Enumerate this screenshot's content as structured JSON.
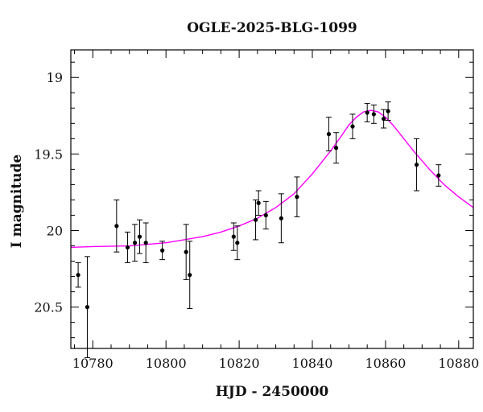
{
  "chart_data": {
    "type": "scatter",
    "title": "OGLE-2025-BLG-1099",
    "xlabel": "HJD - 2450000",
    "ylabel": "I magnitude",
    "xlim": [
      10774,
      10884
    ],
    "ylim": [
      20.77,
      18.82
    ],
    "y_inverted": true,
    "x_ticks": [
      10780,
      10800,
      10820,
      10840,
      10860,
      10880
    ],
    "x_tick_labels": [
      "10780",
      "10800",
      "10820",
      "10840",
      "10860",
      "10880"
    ],
    "y_ticks": [
      19,
      19.5,
      20,
      20.5
    ],
    "y_tick_labels": [
      "19",
      "19.5",
      "20",
      "20.5"
    ],
    "grid": false,
    "legend": "none",
    "colors": {
      "data": "#000000",
      "model": "#ff00ff"
    },
    "series": [
      {
        "kind": "points_with_errorbars",
        "points": [
          {
            "x": 10776.0,
            "y": 20.29,
            "err": 0.08
          },
          {
            "x": 10778.5,
            "y": 20.5,
            "err": 0.33
          },
          {
            "x": 10786.5,
            "y": 19.97,
            "err": 0.17
          },
          {
            "x": 10789.5,
            "y": 20.11,
            "err": 0.1
          },
          {
            "x": 10791.5,
            "y": 20.08,
            "err": 0.12
          },
          {
            "x": 10792.8,
            "y": 20.04,
            "err": 0.11
          },
          {
            "x": 10794.5,
            "y": 20.08,
            "err": 0.13
          },
          {
            "x": 10799.0,
            "y": 20.13,
            "err": 0.06
          },
          {
            "x": 10805.5,
            "y": 20.14,
            "err": 0.18
          },
          {
            "x": 10806.5,
            "y": 20.29,
            "err": 0.22
          },
          {
            "x": 10818.5,
            "y": 20.04,
            "err": 0.09
          },
          {
            "x": 10819.5,
            "y": 20.08,
            "err": 0.11
          },
          {
            "x": 10824.5,
            "y": 19.93,
            "err": 0.13
          },
          {
            "x": 10825.3,
            "y": 19.82,
            "err": 0.08
          },
          {
            "x": 10827.3,
            "y": 19.9,
            "err": 0.09
          },
          {
            "x": 10831.5,
            "y": 19.92,
            "err": 0.16
          },
          {
            "x": 10835.8,
            "y": 19.78,
            "err": 0.13
          },
          {
            "x": 10844.5,
            "y": 19.37,
            "err": 0.11
          },
          {
            "x": 10846.5,
            "y": 19.46,
            "err": 0.1
          },
          {
            "x": 10851.0,
            "y": 19.32,
            "err": 0.08
          },
          {
            "x": 10855.0,
            "y": 19.23,
            "err": 0.06
          },
          {
            "x": 10856.8,
            "y": 19.24,
            "err": 0.06
          },
          {
            "x": 10859.5,
            "y": 19.27,
            "err": 0.06
          },
          {
            "x": 10860.7,
            "y": 19.22,
            "err": 0.06
          },
          {
            "x": 10868.5,
            "y": 19.57,
            "err": 0.17
          },
          {
            "x": 10874.5,
            "y": 19.64,
            "err": 0.07
          }
        ]
      },
      {
        "kind": "model_curve",
        "x": [
          10774,
          10780,
          10790,
          10800,
          10805,
          10810,
          10815,
          10820,
          10825,
          10830,
          10835,
          10840,
          10845,
          10848,
          10850,
          10852,
          10854,
          10856,
          10858,
          10860,
          10862,
          10865,
          10868,
          10872,
          10876,
          10880,
          10884
        ],
        "y": [
          20.11,
          20.105,
          20.1,
          20.08,
          20.06,
          20.04,
          20.01,
          19.97,
          19.92,
          19.85,
          19.76,
          19.63,
          19.48,
          19.38,
          19.31,
          19.26,
          19.225,
          19.215,
          19.225,
          19.26,
          19.31,
          19.4,
          19.49,
          19.6,
          19.7,
          19.78,
          19.85
        ]
      }
    ]
  }
}
